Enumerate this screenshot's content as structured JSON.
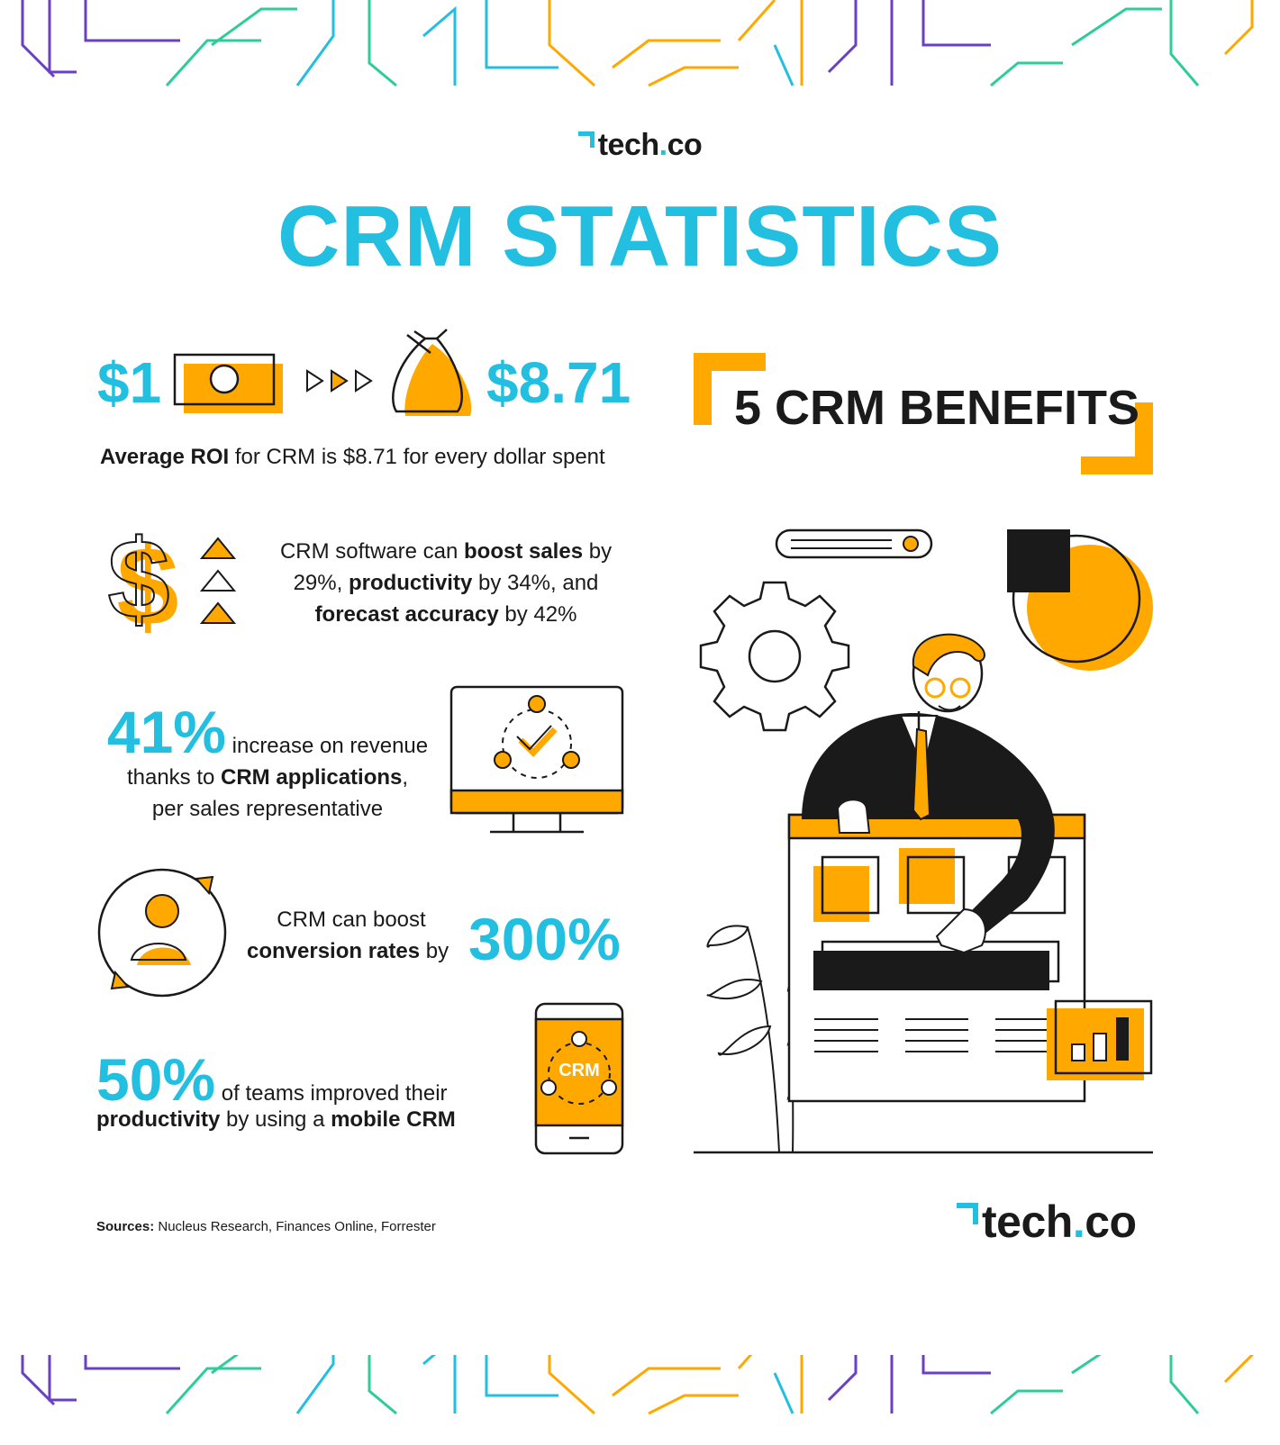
{
  "brand": {
    "name_part1": "tech",
    "name_dot": ".",
    "name_part2": "co"
  },
  "title": "CRM STATISTICS",
  "roi": {
    "from_amount": "$1",
    "to_amount": "$8.71",
    "caption_bold": "Average ROI",
    "caption_rest": " for CRM is $8.71 for every dollar spent"
  },
  "boost_sales": {
    "line1_pre": "CRM software can ",
    "line1_bold": "boost sales",
    "line1_post": " by",
    "line2_pre": "29%, ",
    "line2_bold": "productivity",
    "line2_post": " by 34%, and",
    "line3_bold": "forecast accuracy",
    "line3_post": " by 42%"
  },
  "revenue": {
    "percent": "41%",
    "line1": " increase on revenue",
    "line2_pre": "thanks to ",
    "line2_bold": "CRM applications",
    "line2_post": ",",
    "line3": "per sales representative"
  },
  "conversion": {
    "line1": "CRM can boost",
    "line2_bold": "conversion rates",
    "line2_post": " by",
    "percent": "300%"
  },
  "mobile": {
    "percent": "50%",
    "line1": " of teams improved their",
    "line2_bold1": "productivity",
    "line2_mid": " by using a ",
    "line2_bold2": "mobile CRM",
    "phone_label": "CRM"
  },
  "benefits_title": "5 CRM BENEFITS",
  "sources": {
    "label": "Sources:",
    "text": " Nucleus Research, Finances Online, Forrester"
  },
  "colors": {
    "accent_blue": "#22bfe0",
    "accent_orange": "#ffa800",
    "purple": "#6a3fc4",
    "green": "#2ecc9a",
    "dark": "#1a1a1a"
  },
  "icons": [
    "banknote-icon",
    "arrows-icon",
    "money-bag-icon",
    "dollar-sign-icon",
    "triangles-icon",
    "monitor-check-icon",
    "user-cycle-icon",
    "mobile-crm-icon",
    "gear-icon",
    "pie-chart-icon",
    "search-bar-icon",
    "businessman-illustration",
    "plant-icon",
    "bar-chart-icon"
  ]
}
